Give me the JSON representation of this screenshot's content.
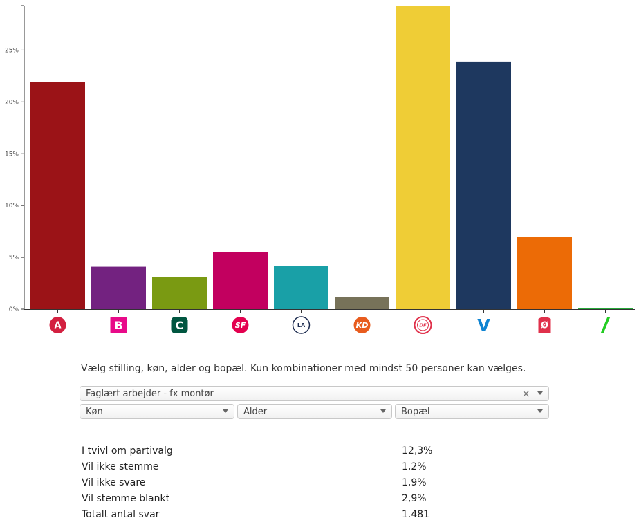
{
  "chart_data": {
    "type": "bar",
    "categories": [
      "A",
      "B",
      "C",
      "SF",
      "LA",
      "KD",
      "DF",
      "V",
      "Ø",
      "Å"
    ],
    "values": [
      21.9,
      4.1,
      3.1,
      5.5,
      4.2,
      1.2,
      29.3,
      23.9,
      7.0,
      0.1
    ],
    "colors": [
      "#9b1317",
      "#732280",
      "#7a9a12",
      "#c2005f",
      "#19a0a7",
      "#777259",
      "#efcd36",
      "#1e385f",
      "#ec6b06",
      "#28a83a"
    ],
    "logo_colors": [
      "#d32040",
      "#e80a89",
      "#005640",
      "#e3004f",
      "#1c2b4f",
      "#e85c1e",
      "#e0314b",
      "#0f84d2",
      "#e0314b",
      "#22cc22"
    ],
    "ylim": [
      0,
      29.3
    ],
    "yticks": [
      0,
      5,
      10,
      15,
      20,
      25
    ],
    "ytick_labels": [
      "0%",
      "5%",
      "10%",
      "15%",
      "20%",
      "25%"
    ]
  },
  "filters": {
    "instructions": "Vælg stilling, køn, alder og bopæl. Kun kombinationer med mindst 50 personer kan vælges.",
    "occupation": "Faglært arbejder - fx montør",
    "clear_symbol": "×",
    "gender": "Køn",
    "age": "Alder",
    "residence": "Bopæl"
  },
  "stats": [
    {
      "label": "I tvivl om partivalg",
      "value": "12,3%"
    },
    {
      "label": "Vil ikke stemme",
      "value": "1,2%"
    },
    {
      "label": "Vil ikke svare",
      "value": "1,9%"
    },
    {
      "label": "Vil stemme blankt",
      "value": "2,9%"
    },
    {
      "label": "Totalt antal svar",
      "value": "1.481"
    }
  ]
}
